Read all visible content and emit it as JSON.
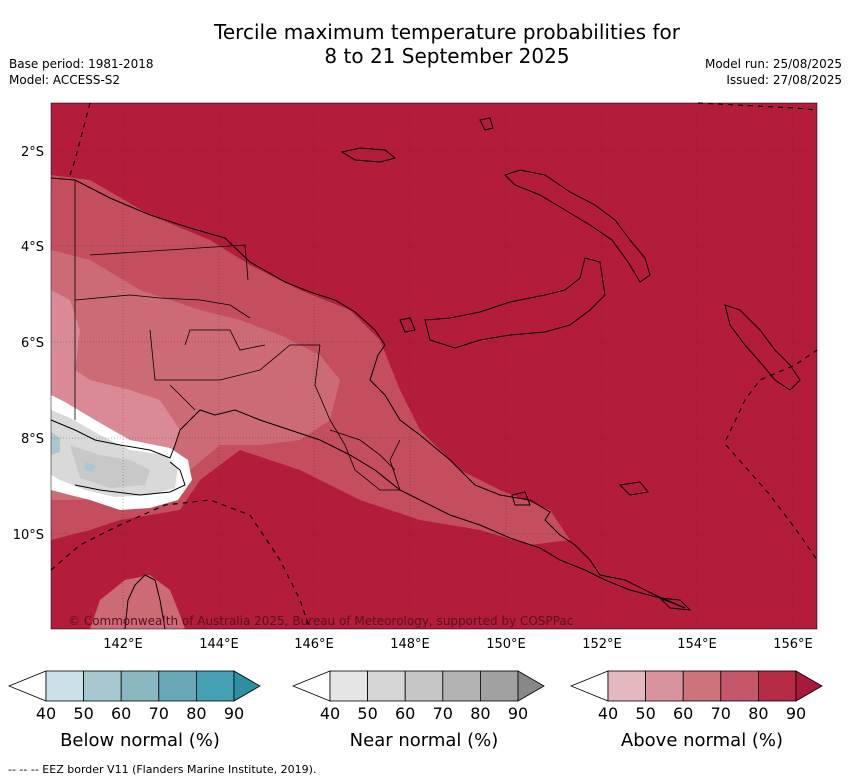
{
  "title": {
    "line1": "Tercile maximum temperature probabilities for",
    "line2": "8 to 21 September 2025"
  },
  "left_info": {
    "base_period": "Base period: 1981-2018",
    "model": "Model: ACCESS-S2"
  },
  "right_info": {
    "model_run": "Model run: 25/08/2025",
    "issued": "Issued: 27/08/2025"
  },
  "map": {
    "lon_labels": [
      "142°E",
      "144°E",
      "146°E",
      "148°E",
      "150°E",
      "152°E",
      "154°E",
      "156°E"
    ],
    "lat_labels": [
      "2°S",
      "4°S",
      "6°S",
      "8°S",
      "10°S"
    ],
    "copyright": "© Commonwealth of Australia 2025, Bureau of Meteorology, supported by COSPPac",
    "colors": {
      "above_90": "#b31c3a",
      "above_80": "#c44e5e",
      "above_70": "#cc6a76",
      "near_70": "#c8c8c8",
      "near_60": "#d9d9d9",
      "below_50": "#a8c8d2",
      "white": "#ffffff"
    }
  },
  "legends": [
    {
      "label": "Below normal (%)",
      "ticks": [
        "40",
        "50",
        "60",
        "70",
        "80",
        "90"
      ],
      "colors": [
        "#ffffff",
        "#c8e2e8",
        "#a8c8cf",
        "#8ab8c2",
        "#68a8b6",
        "#44a0b2",
        "#2e8fa0"
      ]
    },
    {
      "label": "Near normal (%)",
      "ticks": [
        "40",
        "50",
        "60",
        "70",
        "80",
        "90"
      ],
      "colors": [
        "#ffffff",
        "#e5e5e5",
        "#d5d5d5",
        "#c6c6c6",
        "#b3b3b3",
        "#a1a1a1",
        "#888888"
      ]
    },
    {
      "label": "Above normal (%)",
      "ticks": [
        "40",
        "50",
        "60",
        "70",
        "80",
        "90"
      ],
      "colors": [
        "#ffffff",
        "#e3b8bf",
        "#d8949d",
        "#cc737c",
        "#c4586a",
        "#b52a44",
        "#a81a3a"
      ]
    }
  ],
  "footer": "--  --  -- EEZ border V11 (Flanders Marine Institute, 2019)."
}
